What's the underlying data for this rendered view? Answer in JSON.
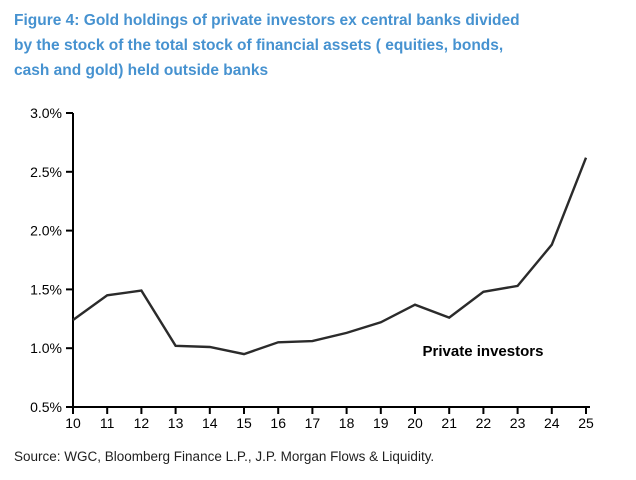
{
  "title": {
    "full": "Figure 4: Gold holdings of private investors ex central banks divided by the stock of the total stock of financial assets ( equities, bonds, cash and gold) held outside banks",
    "lines": [
      "Figure 4: Gold holdings of private investors ex central banks divided",
      "by the stock of the total stock of financial assets ( equities, bonds,",
      "cash and gold) held outside banks"
    ]
  },
  "source": "Source: WGC, Bloomberg Finance L.P., J.P. Morgan Flows & Liquidity.",
  "colors": {
    "title_blue": "#4692D0",
    "line": "#2b2b2b",
    "axis": "#000000",
    "label_text": "#000000"
  },
  "chart_data": {
    "type": "line",
    "x": [
      10,
      11,
      12,
      13,
      14,
      15,
      16,
      17,
      18,
      19,
      20,
      21,
      22,
      23,
      24,
      25
    ],
    "xtick_labels": [
      "10",
      "11",
      "12",
      "13",
      "14",
      "15",
      "16",
      "17",
      "18",
      "19",
      "20",
      "21",
      "22",
      "23",
      "24",
      "25"
    ],
    "series": [
      {
        "name": "Private investors",
        "values": [
          1.24,
          1.45,
          1.49,
          1.02,
          1.01,
          0.95,
          1.05,
          1.06,
          1.13,
          1.22,
          1.37,
          1.26,
          1.48,
          1.53,
          1.88,
          2.62
        ]
      }
    ],
    "ylim": [
      0.5,
      3.0
    ],
    "yticks": [
      0.5,
      1.0,
      1.5,
      2.0,
      2.5,
      3.0
    ],
    "ytick_labels": [
      "0.5%",
      "1.0%",
      "1.5%",
      "2.0%",
      "2.5%",
      "3.0%"
    ],
    "annotation": "Private investors",
    "grid": false,
    "legend": "none",
    "title": "Gold holdings of private investors ex central banks divided by the stock of the total stock of financial assets held outside banks",
    "xlabel": "",
    "ylabel": ""
  }
}
